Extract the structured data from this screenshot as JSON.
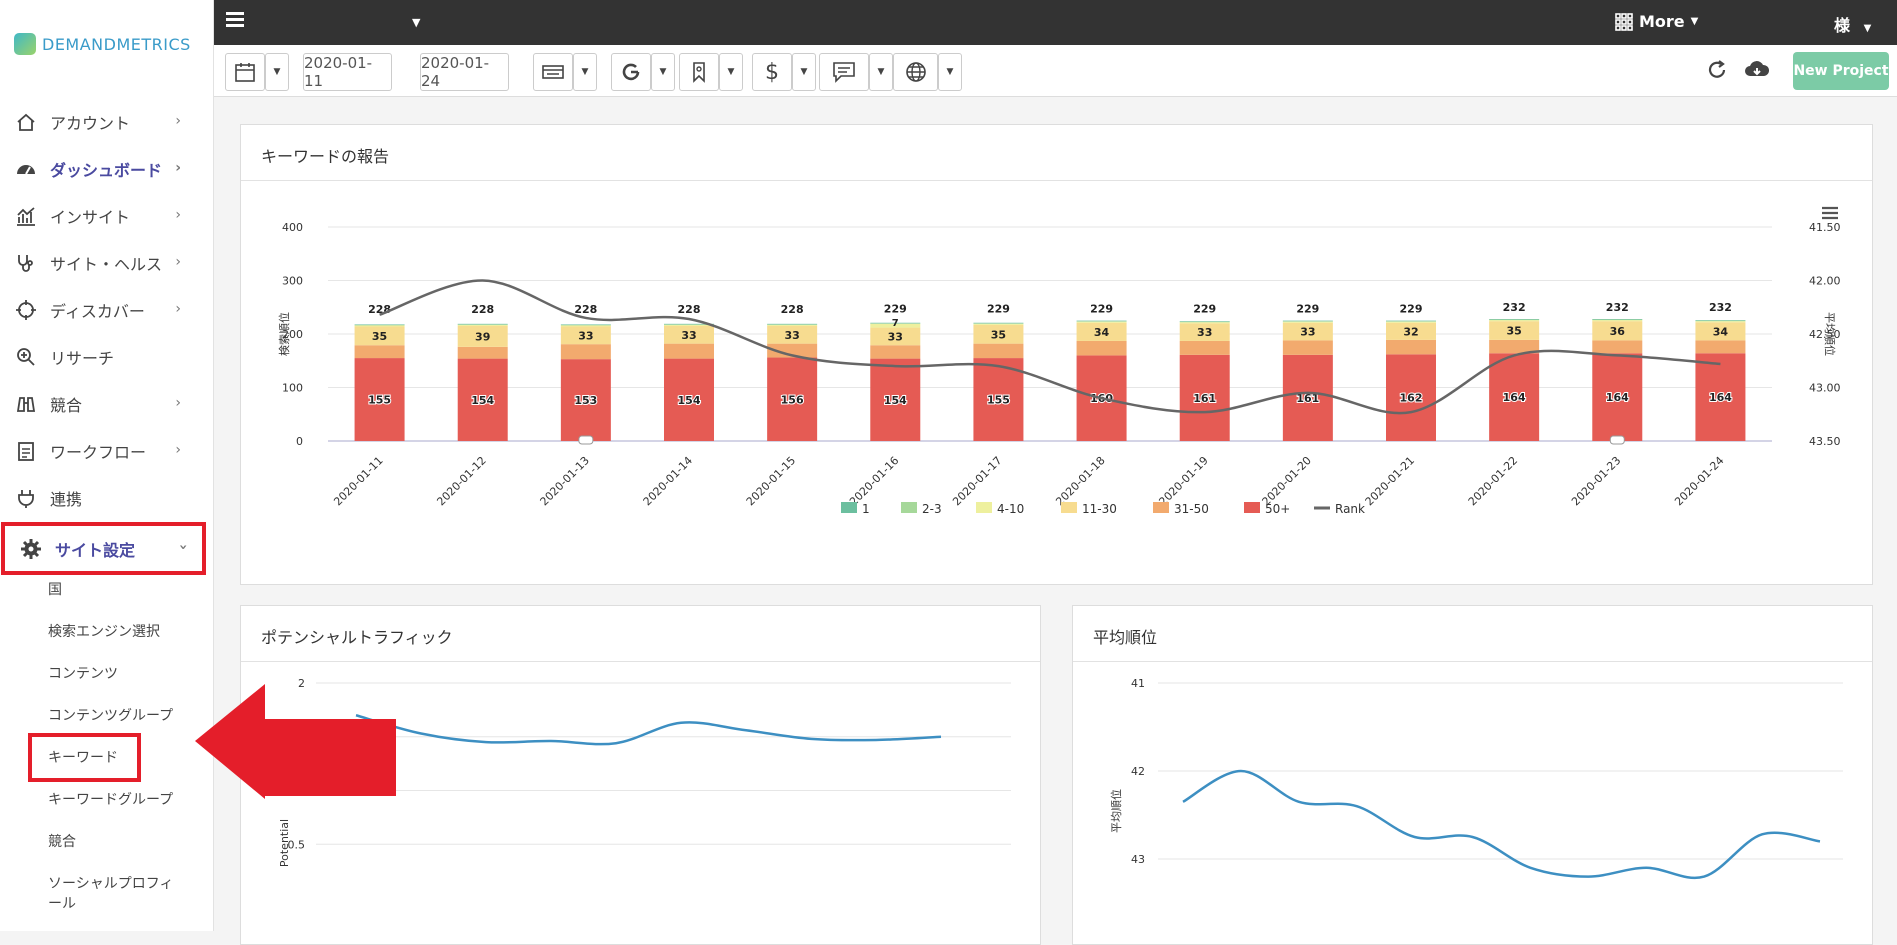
{
  "app": {
    "logo_text": "DEMANDMETRICS"
  },
  "topbar": {
    "more_label": "More",
    "user_label": "様"
  },
  "sidebar": {
    "items": [
      {
        "label": "アカウント",
        "icon": "home-icon"
      },
      {
        "label": "ダッシュボード",
        "icon": "dashboard-icon"
      },
      {
        "label": "インサイト",
        "icon": "insight-chart-icon"
      },
      {
        "label": "サイト・ヘルス",
        "icon": "stethoscope-icon"
      },
      {
        "label": "ディスカバー",
        "icon": "crosshair-icon"
      },
      {
        "label": "リサーチ",
        "icon": "search-plus-icon"
      },
      {
        "label": "競合",
        "icon": "binoculars-icon"
      },
      {
        "label": "ワークフロー",
        "icon": "clipboard-icon"
      },
      {
        "label": "連携",
        "icon": "plug-icon"
      },
      {
        "label": "サイト設定",
        "icon": "gear-icon"
      }
    ],
    "subitems": [
      "国",
      "検索エンジン選択",
      "コンテンツ",
      "コンテンツグループ",
      "キーワード",
      "キーワードグループ",
      "競合",
      "ソーシャルプロフィール"
    ]
  },
  "toolbar": {
    "start_date": "2020-01-11",
    "end_date": "2020-01-24",
    "new_project_label": "New Project"
  },
  "panels": {
    "keyword_report": {
      "title": "キーワードの報告"
    },
    "potential_traffic": {
      "title": "ポテンシャルトラフィック"
    },
    "avg_rank": {
      "title": "平均順位"
    }
  },
  "colors": {
    "r1": "#6cbf9f",
    "r2_3": "#a6d89a",
    "r4_10": "#eef09e",
    "r11_30": "#f7dc90",
    "r31_50": "#f2aa6e",
    "r50p": "#e55b54",
    "rank_line": "#666666",
    "traffic_line": "#3d8fc2",
    "highlight": "#e41e2a"
  },
  "chart_data": [
    {
      "type": "bar",
      "title": "キーワードの報告",
      "ylabel": "検索順位",
      "y2label": "平均順位",
      "ylim": [
        0,
        400
      ],
      "y2lim": [
        41.5,
        43.5
      ],
      "yticks": [
        "400",
        "300",
        "200",
        "100",
        "0"
      ],
      "y2ticks": [
        "41.50",
        "42.00",
        "42.50",
        "43.00",
        "43.50"
      ],
      "categories": [
        "2020-01-11",
        "2020-01-12",
        "2020-01-13",
        "2020-01-14",
        "2020-01-15",
        "2020-01-16",
        "2020-01-17",
        "2020-01-18",
        "2020-01-19",
        "2020-01-20",
        "2020-01-21",
        "2020-01-22",
        "2020-01-23",
        "2020-01-24"
      ],
      "series": [
        {
          "name": "1",
          "values": [
            1,
            1,
            1,
            1,
            1,
            1,
            1,
            1,
            1,
            1,
            1,
            1,
            1,
            1
          ]
        },
        {
          "name": "2-3",
          "values": [
            1,
            1,
            1,
            1,
            1,
            1,
            1,
            1,
            1,
            1,
            1,
            1,
            1,
            1
          ]
        },
        {
          "name": "4-10",
          "values": [
            2,
            2,
            2,
            2,
            2,
            7,
            2,
            2,
            2,
            2,
            2,
            2,
            2,
            2
          ]
        },
        {
          "name": "11-30",
          "values": [
            35,
            39,
            33,
            33,
            33,
            33,
            35,
            34,
            33,
            33,
            32,
            35,
            36,
            34
          ]
        },
        {
          "name": "31-50",
          "values": [
            24,
            22,
            28,
            28,
            26,
            25,
            27,
            27,
            26,
            27,
            27,
            25,
            24,
            24
          ]
        },
        {
          "name": "50+",
          "values": [
            155,
            154,
            153,
            154,
            156,
            154,
            155,
            160,
            161,
            161,
            162,
            164,
            164,
            164
          ]
        },
        {
          "name": "Rank",
          "values": [
            42.32,
            42.0,
            42.35,
            42.36,
            42.7,
            42.8,
            42.8,
            43.1,
            43.23,
            43.05,
            43.23,
            42.7,
            42.7,
            42.78
          ]
        }
      ],
      "totals": [
        228,
        228,
        228,
        228,
        228,
        229,
        229,
        229,
        229,
        229,
        229,
        232,
        232,
        232
      ],
      "labels_11_30": [
        "35",
        "39",
        "33",
        "33",
        "33",
        "33",
        "35",
        "34",
        "33",
        "33",
        "32",
        "35",
        "36",
        "34"
      ],
      "labels_4_10": [
        "",
        "",
        "",
        "",
        "",
        "7",
        "",
        "",
        "",
        "",
        "",
        "",
        "",
        ""
      ],
      "labels_50p": [
        "155",
        "154",
        "153",
        "154",
        "156",
        "154",
        "155",
        "160",
        "161",
        "161",
        "162",
        "164",
        "164",
        "164"
      ],
      "legend": [
        "1",
        "2-3",
        "4-10",
        "11-30",
        "31-50",
        "50+",
        "Rank"
      ]
    },
    {
      "type": "line",
      "title": "ポテンシャルトラフィック",
      "ylabel": "Potential",
      "yticks": [
        "2",
        "1",
        "0.5"
      ],
      "values": [
        1.7,
        1.53,
        1.45,
        1.46,
        1.44,
        1.63,
        1.56,
        1.48,
        1.47,
        1.5
      ]
    },
    {
      "type": "line",
      "title": "平均順位",
      "ylabel": "平均順位",
      "yticks": [
        "41",
        "42",
        "43"
      ],
      "values": [
        42.35,
        42.0,
        42.35,
        42.4,
        42.75,
        42.75,
        43.1,
        43.2,
        43.1,
        43.2,
        42.72,
        42.8
      ]
    }
  ]
}
